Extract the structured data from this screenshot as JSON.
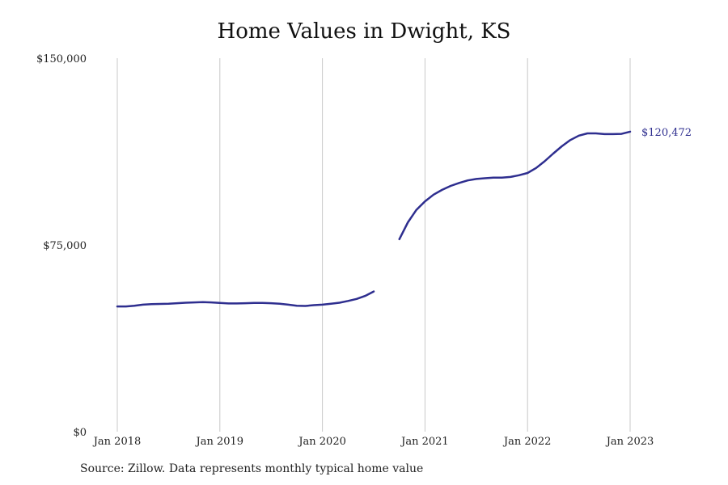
{
  "title": "Home Values in Dwight, KS",
  "source": "Source: Zillow. Data represents monthly typical home value",
  "colors": {
    "line": "#2e2e8f",
    "grid": "#c8c8c8",
    "text": "#222222"
  },
  "chart_data": {
    "type": "line",
    "title": "Home Values in Dwight, KS",
    "xlabel": "",
    "ylabel": "",
    "ylim": [
      0,
      150000
    ],
    "xlim": [
      "2018-01",
      "2023-01"
    ],
    "grid": "vertical lines at each January",
    "legend": "none",
    "y_ticks": [
      {
        "value": 0,
        "label": "$0"
      },
      {
        "value": 75000,
        "label": "$75,000"
      },
      {
        "value": 150000,
        "label": "$150,000"
      }
    ],
    "x_ticks": [
      {
        "value": "2018-01",
        "label": "Jan 2018"
      },
      {
        "value": "2019-01",
        "label": "Jan 2019"
      },
      {
        "value": "2020-01",
        "label": "Jan 2020"
      },
      {
        "value": "2021-01",
        "label": "Jan 2021"
      },
      {
        "value": "2022-01",
        "label": "Jan 2022"
      },
      {
        "value": "2023-01",
        "label": "Jan 2023"
      }
    ],
    "end_label": "$120,472",
    "series": [
      {
        "segments": [
          [
            {
              "x": "2018-01",
              "y": 50300
            },
            {
              "x": "2018-02",
              "y": 50300
            },
            {
              "x": "2018-03",
              "y": 50600
            },
            {
              "x": "2018-04",
              "y": 51000
            },
            {
              "x": "2018-05",
              "y": 51200
            },
            {
              "x": "2018-06",
              "y": 51300
            },
            {
              "x": "2018-07",
              "y": 51400
            },
            {
              "x": "2018-08",
              "y": 51600
            },
            {
              "x": "2018-09",
              "y": 51800
            },
            {
              "x": "2018-10",
              "y": 51900
            },
            {
              "x": "2018-11",
              "y": 52000
            },
            {
              "x": "2018-12",
              "y": 51900
            },
            {
              "x": "2019-01",
              "y": 51700
            },
            {
              "x": "2019-02",
              "y": 51500
            },
            {
              "x": "2019-03",
              "y": 51500
            },
            {
              "x": "2019-04",
              "y": 51600
            },
            {
              "x": "2019-05",
              "y": 51700
            },
            {
              "x": "2019-06",
              "y": 51700
            },
            {
              "x": "2019-07",
              "y": 51600
            },
            {
              "x": "2019-08",
              "y": 51400
            },
            {
              "x": "2019-09",
              "y": 51000
            },
            {
              "x": "2019-10",
              "y": 50600
            },
            {
              "x": "2019-11",
              "y": 50500
            },
            {
              "x": "2019-12",
              "y": 50800
            },
            {
              "x": "2020-01",
              "y": 51000
            },
            {
              "x": "2020-02",
              "y": 51400
            },
            {
              "x": "2020-03",
              "y": 51800
            },
            {
              "x": "2020-04",
              "y": 52500
            },
            {
              "x": "2020-05",
              "y": 53300
            },
            {
              "x": "2020-06",
              "y": 54500
            },
            {
              "x": "2020-07",
              "y": 56300
            }
          ],
          [
            {
              "x": "2020-10",
              "y": 77300
            },
            {
              "x": "2020-11",
              "y": 84100
            },
            {
              "x": "2020-12",
              "y": 89100
            },
            {
              "x": "2021-01",
              "y": 92500
            },
            {
              "x": "2021-02",
              "y": 95200
            },
            {
              "x": "2021-03",
              "y": 97100
            },
            {
              "x": "2021-04",
              "y": 98700
            },
            {
              "x": "2021-05",
              "y": 99900
            },
            {
              "x": "2021-06",
              "y": 100900
            },
            {
              "x": "2021-07",
              "y": 101500
            },
            {
              "x": "2021-08",
              "y": 101800
            },
            {
              "x": "2021-09",
              "y": 102000
            },
            {
              "x": "2021-10",
              "y": 102000
            },
            {
              "x": "2021-11",
              "y": 102300
            },
            {
              "x": "2021-12",
              "y": 103000
            },
            {
              "x": "2022-01",
              "y": 103900
            },
            {
              "x": "2022-02",
              "y": 105900
            },
            {
              "x": "2022-03",
              "y": 108600
            },
            {
              "x": "2022-04",
              "y": 111700
            },
            {
              "x": "2022-05",
              "y": 114600
            },
            {
              "x": "2022-06",
              "y": 117100
            },
            {
              "x": "2022-07",
              "y": 118900
            },
            {
              "x": "2022-08",
              "y": 119800
            },
            {
              "x": "2022-09",
              "y": 119800
            },
            {
              "x": "2022-10",
              "y": 119500
            },
            {
              "x": "2022-11",
              "y": 119500
            },
            {
              "x": "2022-12",
              "y": 119600
            },
            {
              "x": "2023-01",
              "y": 120472
            }
          ]
        ]
      }
    ]
  }
}
